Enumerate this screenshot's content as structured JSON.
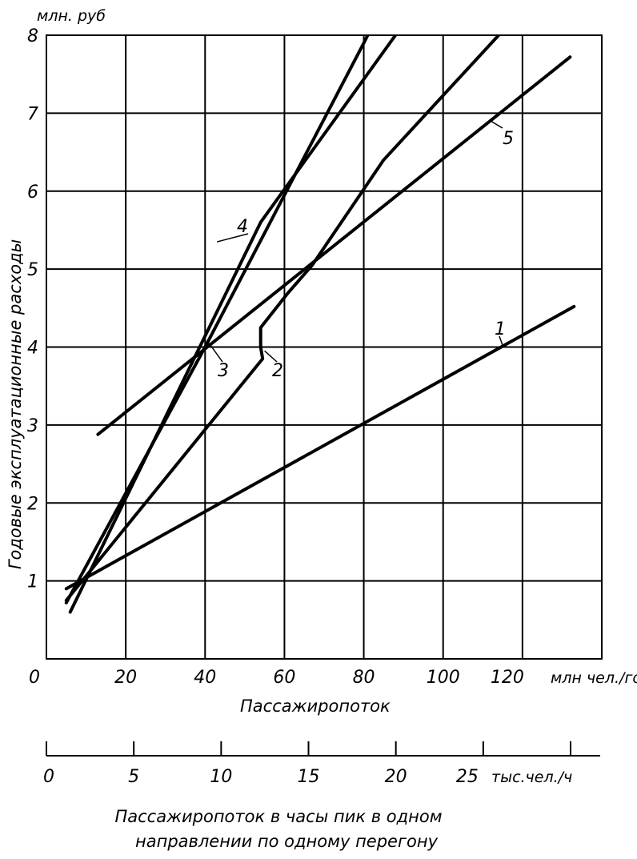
{
  "chart_data": {
    "type": "line",
    "title": "",
    "xlabel": "Пассажиропоток",
    "ylabel": "Годовые эксплуатационные расходы",
    "y_unit": "млн. руб",
    "x_unit": "млн чел./год",
    "xlim": [
      0,
      140
    ],
    "ylim": [
      0,
      8
    ],
    "x_ticks": [
      0,
      20,
      40,
      60,
      80,
      100,
      120
    ],
    "x_tick_labels": [
      "0",
      "20",
      "40",
      "60",
      "80",
      "100",
      "120"
    ],
    "y_ticks": [
      1,
      2,
      3,
      4,
      5,
      6,
      7,
      8
    ],
    "y_tick_labels": [
      "1",
      "2",
      "3",
      "4",
      "5",
      "6",
      "7",
      "8"
    ],
    "grid": true,
    "series": [
      {
        "name": "1",
        "x": [
          5,
          133
        ],
        "y": [
          0.9,
          4.52
        ]
      },
      {
        "name": "2",
        "x": [
          5,
          54.5,
          54,
          54,
          61,
          67,
          85,
          114
        ],
        "y": [
          0.75,
          3.85,
          4.0,
          4.25,
          4.7,
          5.05,
          6.4,
          8.0
        ]
      },
      {
        "name": "3",
        "x": [
          6,
          54,
          88
        ],
        "y": [
          0.6,
          5.6,
          8.0
        ]
      },
      {
        "name": "4",
        "x": [
          5,
          40,
          80,
          81
        ],
        "y": [
          0.72,
          4.0,
          7.9,
          8.0
        ]
      },
      {
        "name": "5",
        "x": [
          13,
          132
        ],
        "y": [
          2.88,
          7.72
        ]
      }
    ],
    "secondary_axis": {
      "label_line1": "Пассажиропоток в часы пик в одном",
      "label_line2": "направлении по одному перегону",
      "unit": "тыс.чел./ч",
      "ticks": [
        0,
        5,
        10,
        15,
        20,
        25,
        30
      ],
      "tick_labels": [
        "0",
        "5",
        "10",
        "15",
        "20",
        "25",
        ""
      ]
    }
  }
}
